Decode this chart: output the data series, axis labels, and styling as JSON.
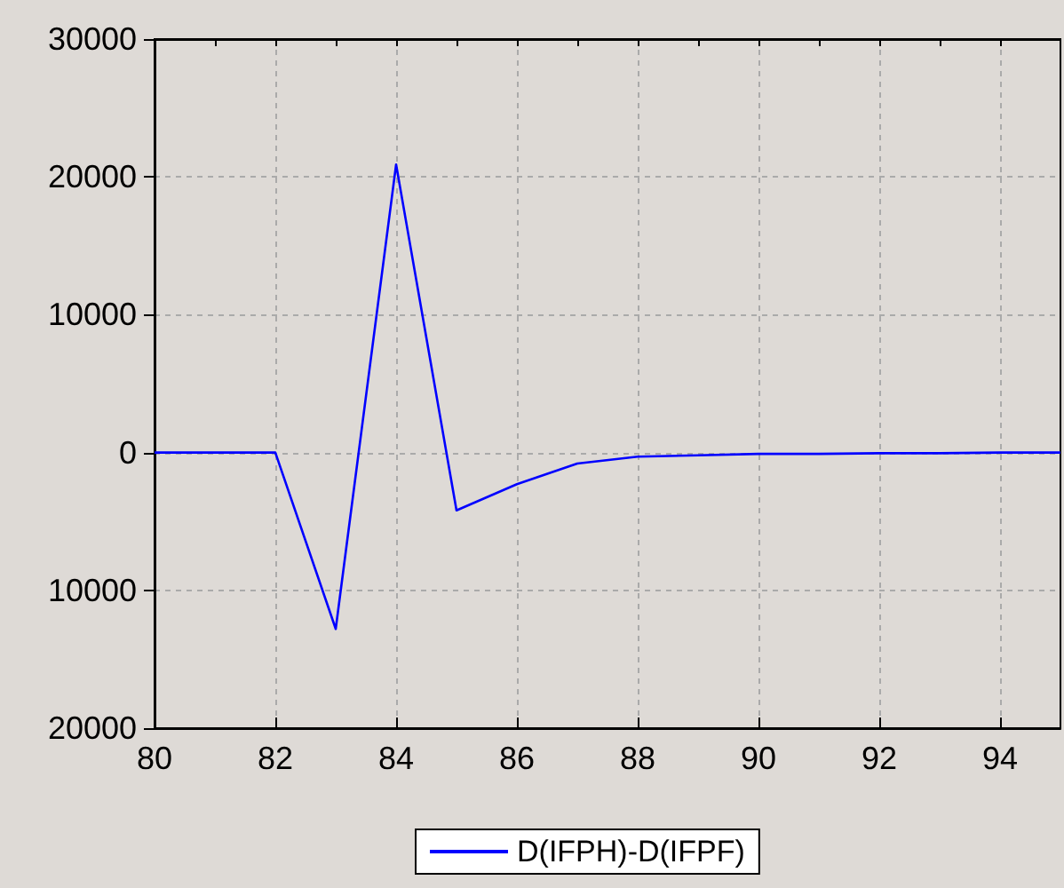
{
  "chart_data": {
    "type": "line",
    "x": [
      80,
      81,
      82,
      83,
      84,
      85,
      86,
      87,
      88,
      89,
      90,
      91,
      92,
      93,
      94,
      95
    ],
    "series": [
      {
        "name": "D(IFPH)-D(IFPF)",
        "color": "#0000ff",
        "values": [
          0,
          0,
          0,
          -12800,
          20900,
          -4200,
          -2300,
          -800,
          -300,
          -200,
          -100,
          -100,
          -50,
          -50,
          0,
          0
        ]
      }
    ],
    "xlim": [
      80,
      95
    ],
    "xticks": [
      80,
      {
        "value": 81,
        "label": null
      },
      82,
      {
        "value": 83,
        "label": null
      },
      84,
      {
        "value": 85,
        "label": null
      },
      86,
      {
        "value": 87,
        "label": null
      },
      88,
      {
        "value": 89,
        "label": null
      },
      90,
      {
        "value": 91,
        "label": null
      },
      92,
      {
        "value": 93,
        "label": null
      },
      94
    ],
    "ylim": [
      -20000,
      30000
    ],
    "yticks": [
      {
        "value": -20000,
        "label": "20000"
      },
      {
        "value": -10000,
        "label": "10000"
      },
      0,
      10000,
      20000,
      30000
    ],
    "grid": true,
    "legend": "bottom",
    "marker": "none",
    "line_style": "solid"
  }
}
